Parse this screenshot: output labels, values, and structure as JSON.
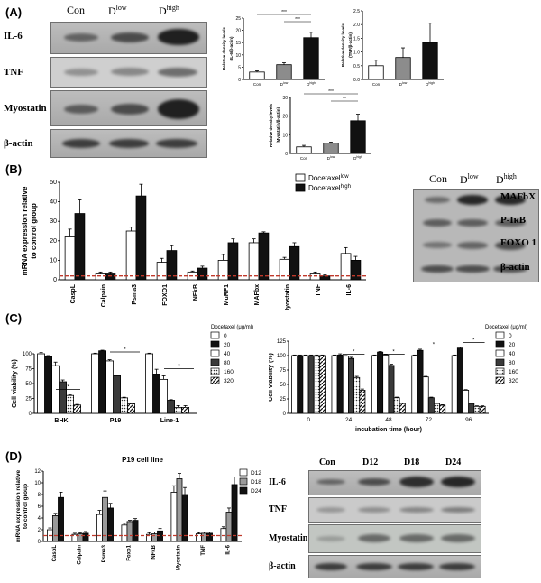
{
  "colors": {
    "black": "#111111",
    "gray": "#8c8c8c",
    "white": "#ffffff",
    "ref_line": "#c0392b"
  },
  "panels": {
    "A": "(A)",
    "B": "(B)",
    "C": "(C)",
    "D": "(D)"
  },
  "blotA": {
    "lanes": [
      "Con",
      "D",
      "D"
    ],
    "lane_sup": [
      "",
      "low",
      "high"
    ],
    "rows": [
      "IL-6",
      "TNF",
      "Myostatin",
      "β-actin"
    ]
  },
  "blotB": {
    "lanes": [
      "Con",
      "D",
      "D"
    ],
    "lane_sup": [
      "",
      "low",
      "high"
    ],
    "rows": [
      "MAFbX",
      "P-IκB",
      "FOXO 1",
      "β-actin"
    ]
  },
  "blotD": {
    "lanes": [
      "Con",
      "D12",
      "D18",
      "D24"
    ],
    "rows": [
      "IL-6",
      "TNF",
      "Myostatin",
      "β-actin"
    ]
  },
  "chart_data": [
    {
      "id": "A1",
      "type": "bar",
      "ylabel": "Relative density levels (IL-6/β-actin)",
      "categories": [
        "Con",
        "Dlow",
        "Dhigh"
      ],
      "values": [
        3,
        6,
        17
      ],
      "errors": [
        0.5,
        0.8,
        2.2
      ],
      "ylim": [
        0,
        25
      ],
      "yticks": [
        "0",
        "5",
        "10",
        "15",
        "20",
        "25"
      ],
      "sig": [
        "***",
        "***"
      ]
    },
    {
      "id": "A2",
      "type": "bar",
      "ylabel": "Relative density levels (TNF/β-actin)",
      "categories": [
        "Con",
        "Dlow",
        "Dhigh"
      ],
      "values": [
        0.5,
        0.8,
        1.35
      ],
      "errors": [
        0.2,
        0.35,
        0.7
      ],
      "ylim": [
        0,
        2.5
      ],
      "yticks": [
        "0.0",
        "0.5",
        "1.0",
        "1.5",
        "2.0",
        "2.5"
      ]
    },
    {
      "id": "A3",
      "type": "bar",
      "ylabel": "Relative density levels (Myostatin/β-actin)",
      "categories": [
        "Con",
        "Dlow",
        "Dhigh"
      ],
      "values": [
        3.5,
        5.5,
        17.5
      ],
      "errors": [
        0.8,
        0.6,
        3.5
      ],
      "ylim": [
        0,
        30
      ],
      "yticks": [
        "0",
        "10",
        "20",
        "30"
      ],
      "sig": [
        "***",
        "**"
      ]
    },
    {
      "id": "B",
      "type": "bar",
      "ylabel": "mRNA expression relative to control group",
      "ylim": [
        0,
        50
      ],
      "yticks": [
        "0",
        "10",
        "20",
        "30",
        "40",
        "50"
      ],
      "categories": [
        "CaspL",
        "Calpain",
        "Psma3",
        "FOXO1",
        "NFkB",
        "MuRF1",
        "MAFbx",
        "Myostatin",
        "TNF",
        "IL-6"
      ],
      "series": [
        {
          "name": "Docetaxel",
          "name_sup": "low",
          "values": [
            22,
            3,
            25,
            9,
            4,
            10,
            19,
            10.5,
            3,
            13.5
          ],
          "errors": [
            4,
            1,
            2,
            2,
            0.5,
            3,
            2,
            1,
            1,
            3
          ]
        },
        {
          "name": "Docetaxel",
          "name_sup": "high",
          "values": [
            34,
            3,
            43,
            15,
            6,
            19,
            24,
            17,
            2,
            10
          ],
          "errors": [
            7,
            1,
            6,
            2.5,
            1,
            2,
            0.6,
            2,
            0.5,
            2
          ]
        }
      ],
      "reference_line": 2
    },
    {
      "id": "C1",
      "type": "bar",
      "ylabel": "Cell viability (%)",
      "ylim": [
        0,
        100
      ],
      "yticks": [
        "0",
        "25",
        "50",
        "75",
        "100"
      ],
      "categories": [
        "BHK",
        "P19",
        "Line-1"
      ],
      "legend_title": "Docetaxel (μg/ml)",
      "series_names": [
        "0",
        "20",
        "40",
        "80",
        "160",
        "320"
      ],
      "values": [
        [
          100,
          95,
          80,
          53,
          30,
          14
        ],
        [
          100,
          105,
          88,
          63,
          26,
          16
        ],
        [
          100,
          66,
          57,
          22,
          10,
          10
        ]
      ],
      "errors": [
        [
          2,
          2,
          6,
          3,
          1,
          1
        ],
        [
          1,
          1,
          2,
          1,
          1,
          1
        ],
        [
          1,
          8,
          6,
          1,
          3,
          3
        ]
      ]
    },
    {
      "id": "C2",
      "type": "bar",
      "ylabel": "Cell viability (%)",
      "xlabel": "incubation time (hour)",
      "ylim": [
        0,
        125
      ],
      "yticks": [
        "0",
        "25",
        "50",
        "75",
        "100",
        "125"
      ],
      "categories": [
        "0",
        "24",
        "48",
        "72",
        "96"
      ],
      "legend_title": "Docetaxel (μg/ml)",
      "series_names": [
        "0",
        "20",
        "40",
        "80",
        "160",
        "320"
      ],
      "values": [
        [
          100,
          100,
          100,
          100,
          100,
          100
        ],
        [
          100,
          101,
          99,
          95,
          62,
          40
        ],
        [
          100,
          106,
          101,
          83,
          27,
          17
        ],
        [
          100,
          109,
          63,
          27,
          17,
          14
        ],
        [
          100,
          113,
          40,
          17,
          12,
          12
        ]
      ],
      "errors": [
        [
          1,
          1,
          1,
          1,
          1,
          1
        ],
        [
          1,
          2,
          1,
          2,
          2,
          2
        ],
        [
          1,
          1,
          1,
          2,
          1,
          1
        ],
        [
          1,
          2,
          1,
          1,
          1,
          1
        ],
        [
          1,
          2,
          1,
          1,
          1,
          1
        ]
      ]
    },
    {
      "id": "D",
      "type": "bar",
      "title": "P19 cell line",
      "ylabel": "mRNA expression relative to control group",
      "ylim": [
        0,
        12
      ],
      "yticks": [
        "0",
        "2",
        "4",
        "6",
        "8",
        "10",
        "12"
      ],
      "categories": [
        "CaspL",
        "Calpain",
        "Psma3",
        "Foxo1",
        "NFkB",
        "Myostatin",
        "TNF",
        "IL-6"
      ],
      "series": [
        {
          "name": "D12",
          "values": [
            2,
            1.2,
            4.6,
            2.8,
            1.2,
            8.4,
            1.3,
            2.2
          ],
          "errors": [
            0.3,
            0.2,
            0.7,
            0.3,
            0.3,
            1.1,
            0.2,
            0.3
          ]
        },
        {
          "name": "D18",
          "values": [
            4.4,
            1.3,
            7.5,
            3.4,
            1.3,
            10.7,
            1.4,
            5
          ],
          "errors": [
            0.4,
            0.2,
            1.1,
            0.2,
            0.3,
            0.9,
            0.2,
            0.7
          ]
        },
        {
          "name": "D24",
          "values": [
            7.5,
            1.4,
            5.7,
            3.6,
            1.8,
            8,
            1.4,
            9.7
          ],
          "errors": [
            0.9,
            0.3,
            0.8,
            0.3,
            0.4,
            1.2,
            0.2,
            1.3
          ]
        }
      ],
      "reference_line": 1
    }
  ]
}
